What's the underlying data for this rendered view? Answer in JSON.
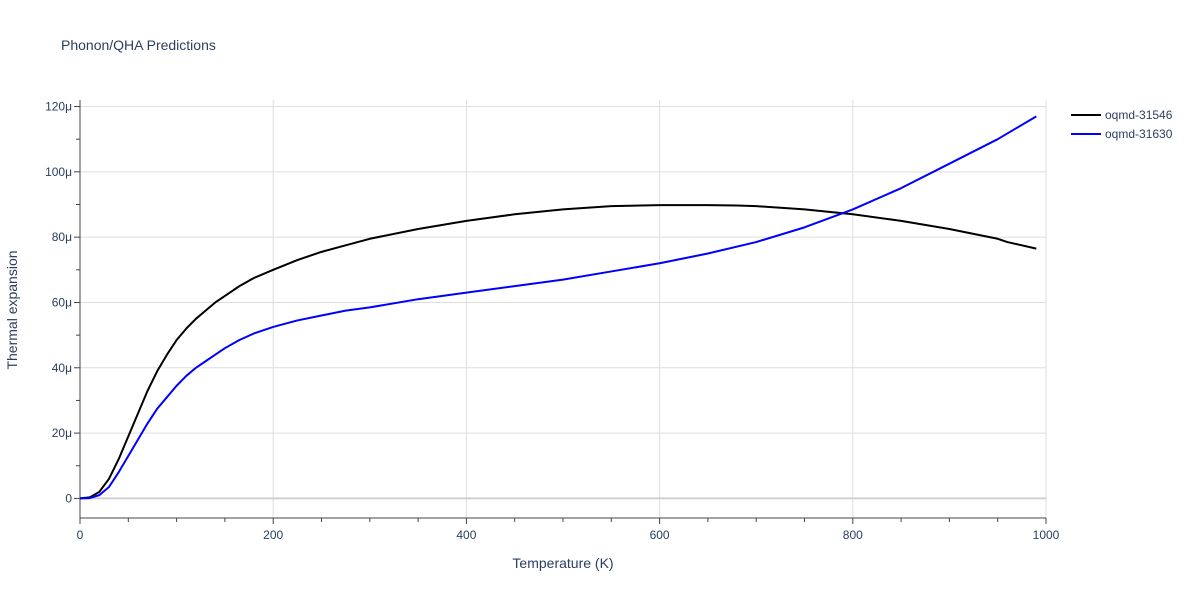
{
  "chart_data": {
    "type": "line",
    "title": "Phonon/QHA Predictions",
    "xlabel": "Temperature (K)",
    "ylabel": "Thermal expansion",
    "xlim": [
      0,
      1000
    ],
    "ylim": [
      -6,
      122
    ],
    "x_ticks": [
      0,
      200,
      400,
      600,
      800,
      1000
    ],
    "x_tick_labels": [
      "0",
      "200",
      "400",
      "600",
      "800",
      "1000"
    ],
    "y_ticks": [
      0,
      20,
      40,
      60,
      80,
      100,
      120
    ],
    "y_tick_labels": [
      "0",
      "20μ",
      "40μ",
      "60μ",
      "80μ",
      "100μ",
      "120μ"
    ],
    "grid": true,
    "legend_position": "top-right",
    "series": [
      {
        "name": "oqmd-31546",
        "color": "#000000",
        "x": [
          0,
          10,
          20,
          30,
          40,
          50,
          60,
          70,
          80,
          90,
          100,
          110,
          120,
          130,
          140,
          150,
          165,
          180,
          200,
          225,
          250,
          275,
          300,
          350,
          400,
          450,
          500,
          550,
          600,
          650,
          680,
          700,
          750,
          800,
          850,
          900,
          950,
          960,
          990
        ],
        "y": [
          0,
          0.3,
          2,
          6,
          12,
          19,
          26,
          33,
          39,
          44,
          48.5,
          52,
          55,
          57.5,
          60,
          62,
          65,
          67.5,
          70,
          73,
          75.5,
          77.5,
          79.5,
          82.5,
          85,
          87,
          88.5,
          89.5,
          89.8,
          89.8,
          89.7,
          89.5,
          88.5,
          87,
          85,
          82.5,
          79.5,
          78.5,
          76.5
        ]
      },
      {
        "name": "oqmd-31630",
        "color": "#0000ff",
        "x": [
          0,
          10,
          20,
          30,
          40,
          50,
          60,
          70,
          80,
          90,
          100,
          110,
          120,
          130,
          140,
          150,
          165,
          180,
          200,
          225,
          250,
          275,
          300,
          350,
          400,
          450,
          500,
          550,
          600,
          650,
          700,
          750,
          800,
          850,
          900,
          950,
          990
        ],
        "y": [
          0,
          0.1,
          1,
          3.5,
          8,
          13,
          18,
          23,
          27.5,
          31,
          34.5,
          37.5,
          40,
          42,
          44,
          46,
          48.5,
          50.5,
          52.5,
          54.5,
          56,
          57.5,
          58.5,
          61,
          63,
          65,
          67,
          69.5,
          72,
          75,
          78.5,
          83,
          88.5,
          95,
          102.5,
          110,
          117
        ]
      }
    ]
  }
}
